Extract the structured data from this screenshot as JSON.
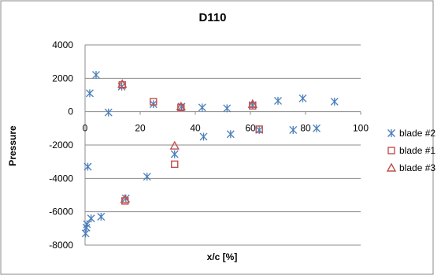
{
  "chart_data": {
    "type": "scatter",
    "title": "D110",
    "xlabel": "x/c [%]",
    "ylabel": "Pressure",
    "xlim": [
      0,
      100
    ],
    "ylim": [
      -8000,
      4000
    ],
    "x_ticks": [
      0,
      20,
      40,
      60,
      80,
      100
    ],
    "y_ticks": [
      4000,
      2000,
      0,
      -2000,
      -4000,
      -6000,
      -8000
    ],
    "grid": "horizontal",
    "legend": "right",
    "series": [
      {
        "name": "blade #2",
        "marker": "x-star",
        "color": "#4a7ebb",
        "points": [
          [
            0.2,
            -7300
          ],
          [
            0.5,
            -6950
          ],
          [
            0.7,
            -6750
          ],
          [
            1.0,
            -3300
          ],
          [
            1.7,
            1100
          ],
          [
            2.2,
            -6400
          ],
          [
            4.0,
            2200
          ],
          [
            5.8,
            -6300
          ],
          [
            8.5,
            -50
          ],
          [
            13.3,
            1500
          ],
          [
            14.8,
            -5200
          ],
          [
            22.5,
            -3900
          ],
          [
            24.8,
            450
          ],
          [
            32.5,
            -2550
          ],
          [
            35.0,
            300
          ],
          [
            42.5,
            250
          ],
          [
            43.0,
            -1500
          ],
          [
            51.5,
            200
          ],
          [
            52.8,
            -1350
          ],
          [
            60.8,
            400
          ],
          [
            63.2,
            -1100
          ],
          [
            70.0,
            650
          ],
          [
            75.5,
            -1100
          ],
          [
            79.0,
            800
          ],
          [
            84.0,
            -1000
          ],
          [
            90.5,
            600
          ]
        ]
      },
      {
        "name": "blade #1",
        "marker": "square",
        "color": "#c0504d",
        "points": [
          [
            13.5,
            1600
          ],
          [
            14.5,
            -5350
          ],
          [
            24.8,
            600
          ],
          [
            32.5,
            -3150
          ],
          [
            34.8,
            250
          ],
          [
            60.8,
            350
          ],
          [
            63.2,
            -1050
          ]
        ]
      },
      {
        "name": "blade #3",
        "marker": "triangle",
        "color": "#c0504d",
        "points": [
          [
            13.5,
            1650
          ],
          [
            14.5,
            -5250
          ],
          [
            32.5,
            -2050
          ],
          [
            34.8,
            300
          ],
          [
            60.8,
            450
          ]
        ]
      }
    ]
  }
}
